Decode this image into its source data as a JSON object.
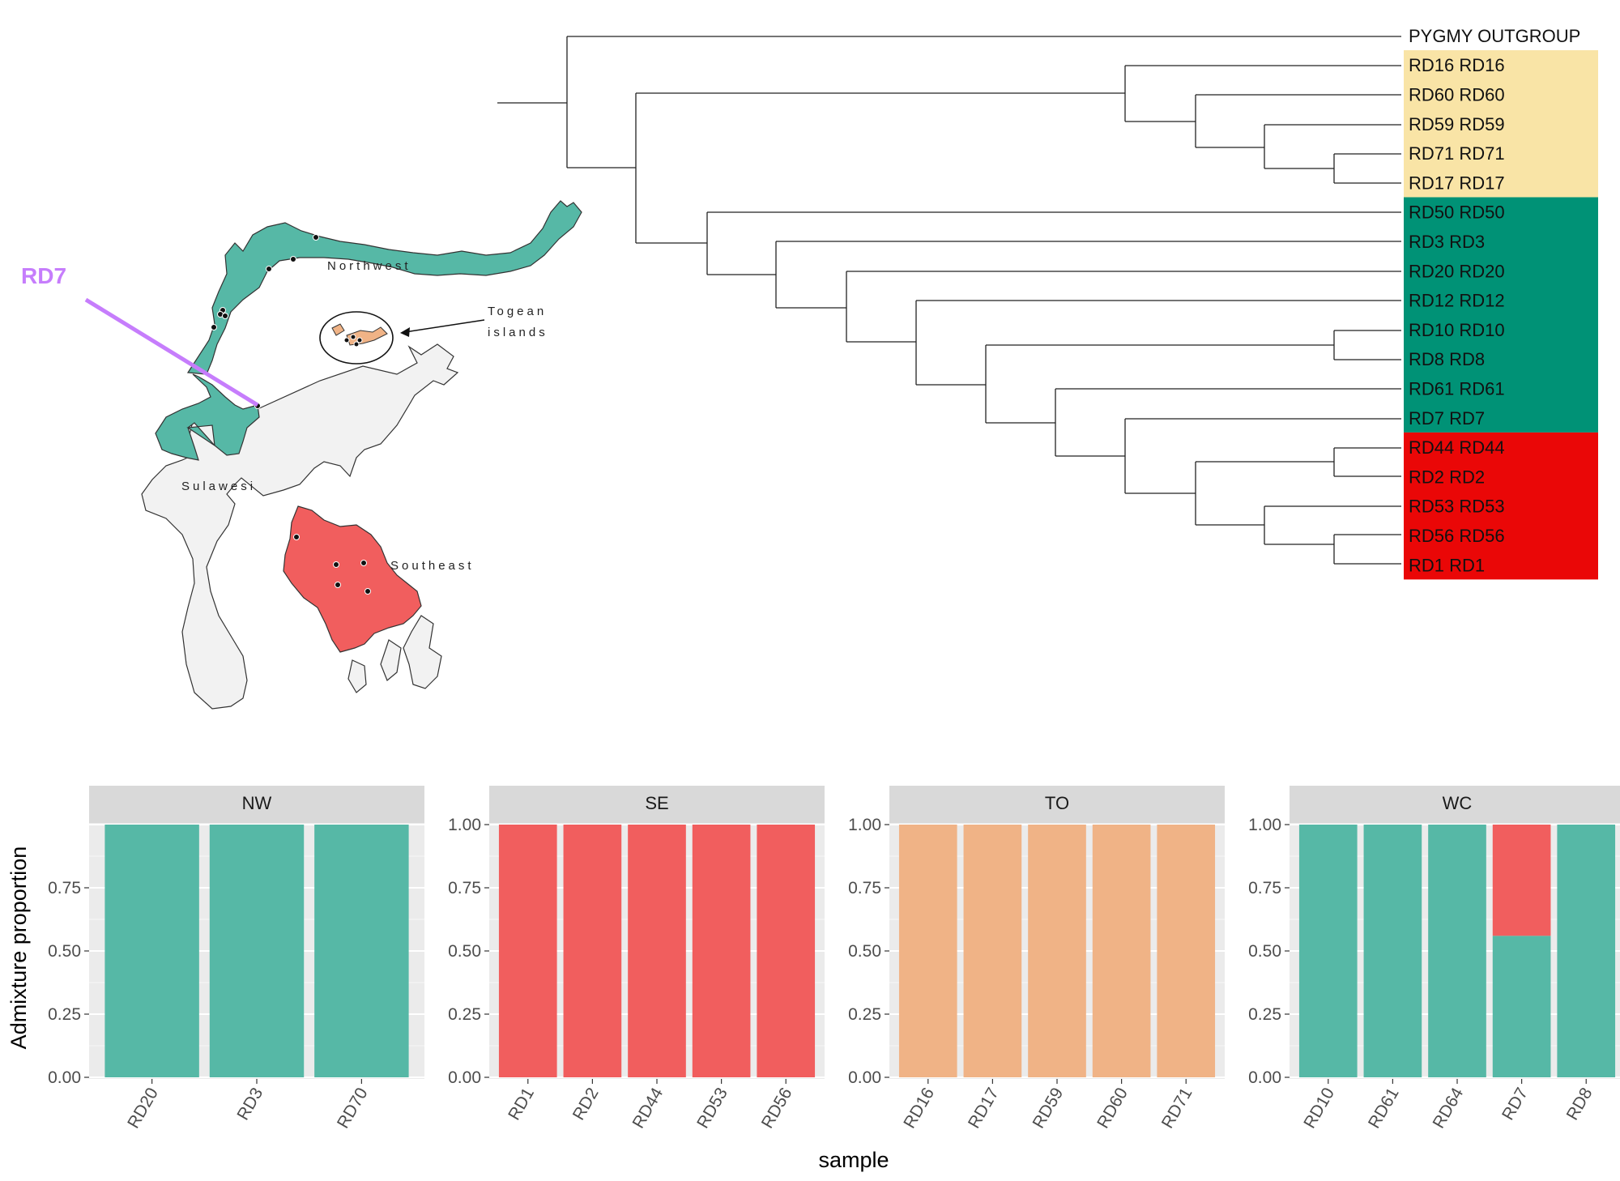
{
  "colors": {
    "northwest": "#56b8a6",
    "southeast": "#f15e5e",
    "togean": "#f0b386",
    "sulawesi": "#f2f2f2",
    "clade_yellow": "#f9e4a6",
    "clade_green": "#009276",
    "clade_red": "#ea0707",
    "rd7_marker": "#c67dfc",
    "panel_bg": "#ebebeb",
    "strip_bg": "#d9d9d9"
  },
  "map": {
    "region_labels": [
      "Northwest",
      "Sulawesi",
      "Southeast"
    ],
    "togean_label_lines": [
      "Togean",
      "islands"
    ],
    "highlight_label": "RD7"
  },
  "tree": {
    "outgroup": "PYGMY OUTGROUP",
    "tips": [
      {
        "label": "RD16 RD16",
        "clade": "yellow"
      },
      {
        "label": "RD60 RD60",
        "clade": "yellow"
      },
      {
        "label": "RD59 RD59",
        "clade": "yellow"
      },
      {
        "label": "RD71 RD71",
        "clade": "yellow"
      },
      {
        "label": "RD17 RD17",
        "clade": "yellow"
      },
      {
        "label": "RD50 RD50",
        "clade": "green"
      },
      {
        "label": "RD3 RD3",
        "clade": "green"
      },
      {
        "label": "RD20 RD20",
        "clade": "green"
      },
      {
        "label": "RD12 RD12",
        "clade": "green"
      },
      {
        "label": "RD10 RD10",
        "clade": "green"
      },
      {
        "label": "RD8 RD8",
        "clade": "green"
      },
      {
        "label": "RD61 RD61",
        "clade": "green"
      },
      {
        "label": "RD7 RD7",
        "clade": "green"
      },
      {
        "label": "RD44 RD44",
        "clade": "red"
      },
      {
        "label": "RD2 RD2",
        "clade": "red"
      },
      {
        "label": "RD53 RD53",
        "clade": "red"
      },
      {
        "label": "RD56 RD56",
        "clade": "red"
      },
      {
        "label": "RD1 RD1",
        "clade": "red"
      }
    ]
  },
  "chart_data": {
    "type": "bar",
    "stacked": true,
    "ylabel": "Admixture proportion",
    "xlabel": "sample",
    "ylim": [
      0,
      1
    ],
    "yticks": [
      "0.00",
      "0.25",
      "0.50",
      "0.75",
      "1.00"
    ],
    "legend": "none",
    "facets": [
      {
        "name": "NW",
        "categories": [
          "RD20",
          "RD3",
          "RD70"
        ],
        "series": [
          {
            "component": "northwest",
            "values": [
              1,
              1,
              1
            ]
          },
          {
            "component": "southeast",
            "values": [
              0,
              0,
              0
            ]
          },
          {
            "component": "togean",
            "values": [
              0,
              0,
              0
            ]
          }
        ]
      },
      {
        "name": "SE",
        "categories": [
          "RD1",
          "RD2",
          "RD44",
          "RD53",
          "RD56"
        ],
        "series": [
          {
            "component": "northwest",
            "values": [
              0,
              0,
              0,
              0,
              0
            ]
          },
          {
            "component": "southeast",
            "values": [
              1,
              1,
              1,
              1,
              1
            ]
          },
          {
            "component": "togean",
            "values": [
              0,
              0,
              0,
              0,
              0
            ]
          }
        ]
      },
      {
        "name": "TO",
        "categories": [
          "RD16",
          "RD17",
          "RD59",
          "RD60",
          "RD71"
        ],
        "series": [
          {
            "component": "northwest",
            "values": [
              0,
              0,
              0,
              0,
              0
            ]
          },
          {
            "component": "southeast",
            "values": [
              0,
              0,
              0,
              0,
              0
            ]
          },
          {
            "component": "togean",
            "values": [
              1,
              1,
              1,
              1,
              1
            ]
          }
        ]
      },
      {
        "name": "WC",
        "categories": [
          "RD10",
          "RD61",
          "RD64",
          "RD7",
          "RD8"
        ],
        "series": [
          {
            "component": "northwest",
            "values": [
              1,
              1,
              1,
              0.56,
              1
            ]
          },
          {
            "component": "southeast",
            "values": [
              0,
              0,
              0,
              0.44,
              0
            ]
          },
          {
            "component": "togean",
            "values": [
              0,
              0,
              0,
              0,
              0
            ]
          }
        ]
      }
    ]
  }
}
